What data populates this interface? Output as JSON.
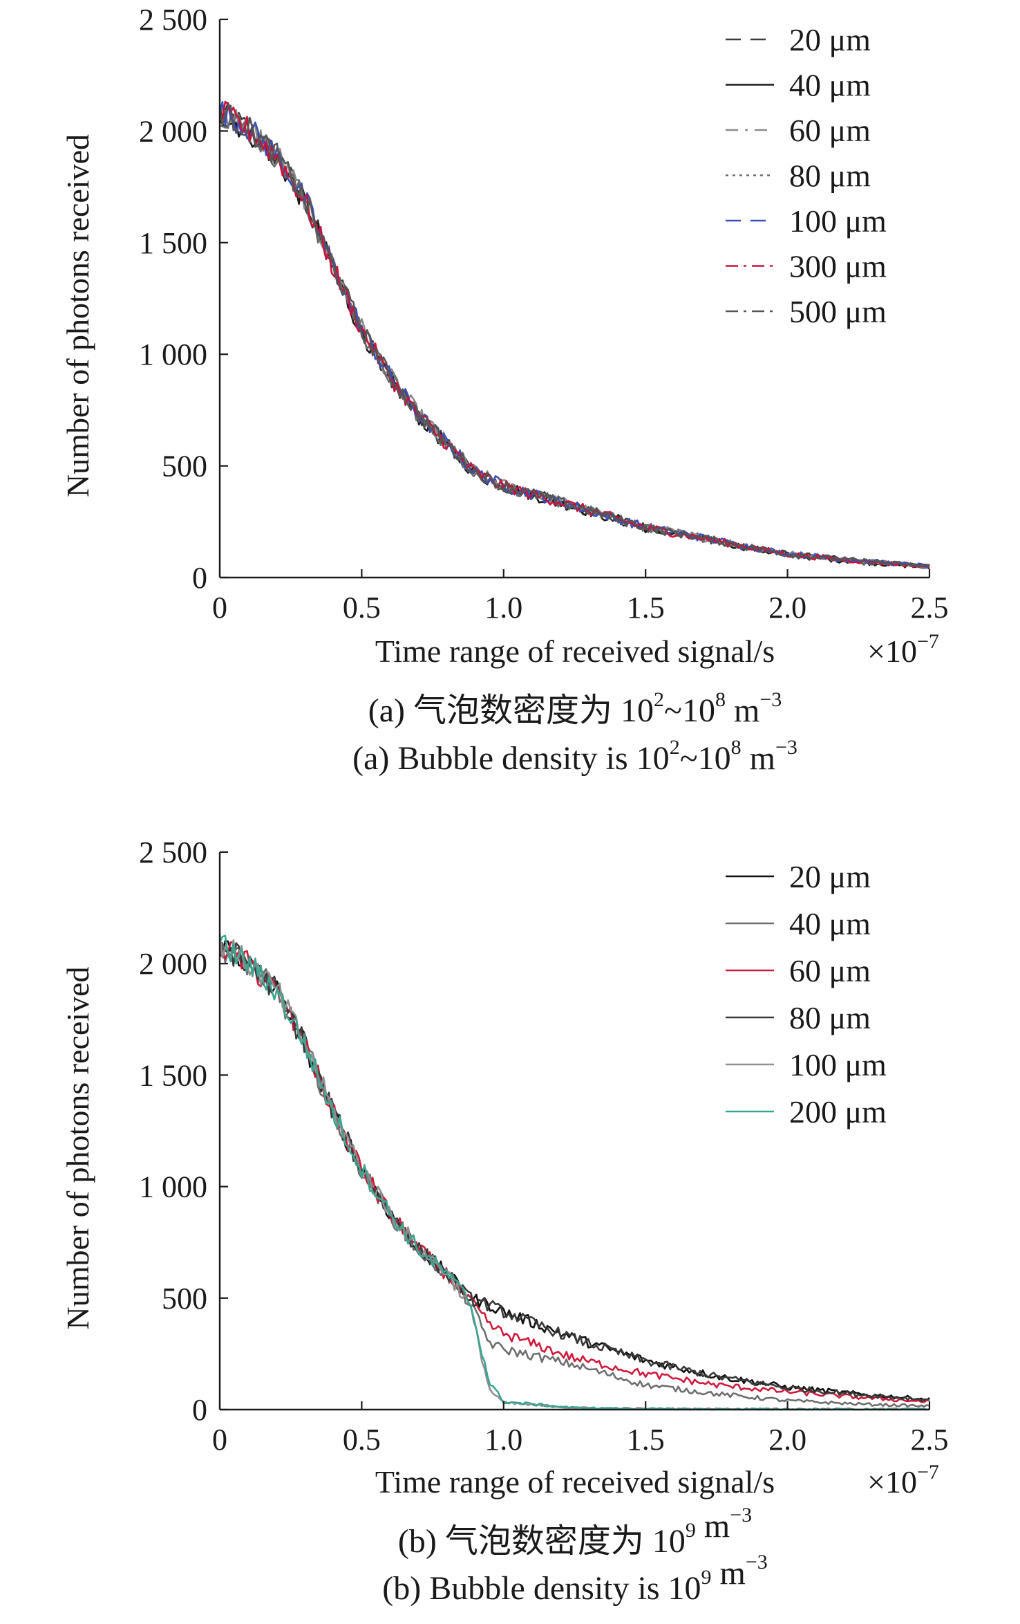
{
  "chart_data": [
    {
      "type": "line",
      "panel": "a",
      "xlabel": "Time range of received signal/s",
      "x_multiplier": "×10",
      "x_multiplier_exp": "−7",
      "ylabel": "Number of photons received",
      "xlim": [
        0,
        2.5
      ],
      "ylim": [
        0,
        2500
      ],
      "xticks": [
        0,
        0.5,
        1.0,
        1.5,
        2.0,
        2.5
      ],
      "xtick_labels": [
        "0",
        "0.5",
        "1.0",
        "1.5",
        "2.0",
        "2.5"
      ],
      "yticks": [
        0,
        500,
        1000,
        1500,
        2000,
        2500
      ],
      "ytick_labels": [
        "0",
        "500",
        "1 000",
        "1 500",
        "2 000",
        "2 500"
      ],
      "legend_position": "top-right",
      "caption_cn": [
        "(a) 气泡数密度为 10",
        "2",
        "~10",
        "8",
        " m",
        "−3"
      ],
      "caption_en": [
        "(a) Bubble density is 10",
        "2",
        "~10",
        "8",
        " m",
        "−3"
      ],
      "series": [
        {
          "name": "20 μm",
          "color": "#3a3a3a",
          "dash": "22,14",
          "x": [
            0,
            0.1,
            0.2,
            0.3,
            0.4,
            0.5,
            0.6,
            0.7,
            0.8,
            0.9,
            1.0,
            1.25,
            1.5,
            1.75,
            2.0,
            2.25,
            2.5
          ],
          "y": [
            2090,
            2010,
            1890,
            1690,
            1390,
            1110,
            900,
            730,
            600,
            470,
            410,
            320,
            225,
            165,
            105,
            75,
            50
          ]
        },
        {
          "name": "40 μm",
          "color": "#1a1a1a",
          "dash": "",
          "x": [
            0,
            0.1,
            0.2,
            0.3,
            0.4,
            0.5,
            0.6,
            0.7,
            0.8,
            0.9,
            1.0,
            1.25,
            1.5,
            1.75,
            2.0,
            2.25,
            2.5
          ],
          "y": [
            2080,
            2000,
            1880,
            1680,
            1380,
            1100,
            890,
            720,
            590,
            465,
            405,
            315,
            220,
            160,
            100,
            70,
            45
          ]
        },
        {
          "name": "60 μm",
          "color": "#8a8a8a",
          "dash": "18,10,4,10",
          "x": [
            0,
            0.1,
            0.2,
            0.3,
            0.4,
            0.5,
            0.6,
            0.7,
            0.8,
            0.9,
            1.0,
            1.25,
            1.5,
            1.75,
            2.0,
            2.25,
            2.5
          ],
          "y": [
            2100,
            2020,
            1900,
            1700,
            1400,
            1120,
            905,
            735,
            605,
            475,
            415,
            322,
            228,
            168,
            108,
            78,
            52
          ]
        },
        {
          "name": "80 μm",
          "color": "#6a6a6a",
          "dash": "4,6",
          "x": [
            0,
            0.1,
            0.2,
            0.3,
            0.4,
            0.5,
            0.6,
            0.7,
            0.8,
            0.9,
            1.0,
            1.25,
            1.5,
            1.75,
            2.0,
            2.25,
            2.5
          ],
          "y": [
            2085,
            2005,
            1885,
            1685,
            1385,
            1105,
            895,
            725,
            595,
            468,
            408,
            318,
            222,
            162,
            102,
            72,
            48
          ]
        },
        {
          "name": "100 μm",
          "color": "#3b4fb8",
          "dash": "22,14",
          "x": [
            0,
            0.1,
            0.2,
            0.3,
            0.4,
            0.5,
            0.6,
            0.7,
            0.8,
            0.9,
            1.0,
            1.25,
            1.5,
            1.75,
            2.0,
            2.25,
            2.5
          ],
          "y": [
            2095,
            2015,
            1895,
            1695,
            1395,
            1115,
            902,
            732,
            602,
            472,
            412,
            320,
            226,
            166,
            106,
            76,
            51
          ]
        },
        {
          "name": "300 μm",
          "color": "#c8143c",
          "dash": "18,8,4,8",
          "x": [
            0,
            0.1,
            0.2,
            0.3,
            0.4,
            0.5,
            0.6,
            0.7,
            0.8,
            0.9,
            1.0,
            1.25,
            1.5,
            1.75,
            2.0,
            2.25,
            2.5
          ],
          "y": [
            2088,
            2008,
            1888,
            1688,
            1388,
            1108,
            898,
            728,
            598,
            470,
            410,
            319,
            224,
            164,
            104,
            74,
            49
          ]
        },
        {
          "name": "500 μm",
          "color": "#555555",
          "dash": "18,8,4,8",
          "x": [
            0,
            0.1,
            0.2,
            0.3,
            0.4,
            0.5,
            0.6,
            0.7,
            0.8,
            0.9,
            1.0,
            1.25,
            1.5,
            1.75,
            2.0,
            2.25,
            2.5
          ],
          "y": [
            2092,
            2012,
            1892,
            1692,
            1392,
            1112,
            900,
            730,
            600,
            471,
            411,
            320,
            225,
            165,
            105,
            75,
            50
          ]
        }
      ]
    },
    {
      "type": "line",
      "panel": "b",
      "xlabel": "Time range of received signal/s",
      "x_multiplier": "×10",
      "x_multiplier_exp": "−7",
      "ylabel": "Number of photons received",
      "xlim": [
        0,
        2.5
      ],
      "ylim": [
        0,
        2500
      ],
      "xticks": [
        0,
        0.5,
        1.0,
        1.5,
        2.0,
        2.5
      ],
      "xtick_labels": [
        "0",
        "0.5",
        "1.0",
        "1.5",
        "2.0",
        "2.5"
      ],
      "yticks": [
        0,
        500,
        1000,
        1500,
        2000,
        2500
      ],
      "ytick_labels": [
        "0",
        "500",
        "1 000",
        "1 500",
        "2 000",
        "2 500"
      ],
      "legend_position": "top-right",
      "caption_cn": [
        "(b) 气泡数密度为 10",
        "9",
        "",
        "",
        " m",
        "−3"
      ],
      "caption_en": [
        "(b) Bubble density is 10",
        "9",
        "",
        "",
        " m",
        "−3"
      ],
      "series": [
        {
          "name": "20 μm",
          "color": "#111111",
          "dash": "",
          "x": [
            0,
            0.1,
            0.2,
            0.3,
            0.4,
            0.5,
            0.6,
            0.7,
            0.8,
            0.88,
            0.95,
            1.0,
            1.25,
            1.5,
            1.75,
            2.0,
            2.25,
            2.5
          ],
          "y": [
            2090,
            2000,
            1880,
            1640,
            1330,
            1080,
            880,
            720,
            610,
            500,
            470,
            440,
            320,
            220,
            150,
            100,
            70,
            45
          ]
        },
        {
          "name": "40 μm",
          "color": "#6e6e6e",
          "dash": "",
          "x": [
            0,
            0.1,
            0.2,
            0.3,
            0.4,
            0.5,
            0.6,
            0.7,
            0.8,
            0.88,
            0.95,
            1.0,
            1.25,
            1.5,
            1.75,
            2.0,
            2.25,
            2.5
          ],
          "y": [
            2080,
            1995,
            1875,
            1635,
            1325,
            1075,
            875,
            715,
            605,
            480,
            300,
            270,
            200,
            110,
            70,
            40,
            25,
            15
          ]
        },
        {
          "name": "60 μm",
          "color": "#d01a3c",
          "dash": "",
          "x": [
            0,
            0.1,
            0.2,
            0.3,
            0.4,
            0.5,
            0.6,
            0.7,
            0.8,
            0.88,
            0.95,
            1.0,
            1.25,
            1.5,
            1.75,
            2.0,
            2.25,
            2.5
          ],
          "y": [
            2085,
            1998,
            1878,
            1638,
            1328,
            1078,
            878,
            718,
            608,
            490,
            380,
            340,
            230,
            160,
            110,
            80,
            55,
            35
          ]
        },
        {
          "name": "80 μm",
          "color": "#3a3a3a",
          "dash": "",
          "x": [
            0,
            0.1,
            0.2,
            0.3,
            0.4,
            0.5,
            0.6,
            0.7,
            0.8,
            0.88,
            0.95,
            1.0,
            1.25,
            1.5,
            1.75,
            2.0,
            2.25,
            2.5
          ],
          "y": [
            2088,
            2002,
            1882,
            1642,
            1332,
            1082,
            882,
            722,
            612,
            498,
            468,
            438,
            318,
            218,
            148,
            98,
            68,
            44
          ]
        },
        {
          "name": "100 μm",
          "color": "#909090",
          "dash": "",
          "x": [
            0,
            0.1,
            0.2,
            0.3,
            0.4,
            0.5,
            0.6,
            0.7,
            0.8,
            0.88,
            0.95,
            1.0,
            1.25,
            1.5,
            1.75,
            2.0,
            2.25,
            2.5
          ],
          "y": [
            2092,
            2004,
            1884,
            1644,
            1334,
            1084,
            884,
            724,
            614,
            470,
            90,
            30,
            8,
            4,
            3,
            2,
            2,
            2
          ]
        },
        {
          "name": "200 μm",
          "color": "#3aa590",
          "dash": "",
          "x": [
            0,
            0.1,
            0.2,
            0.3,
            0.4,
            0.5,
            0.6,
            0.7,
            0.8,
            0.88,
            0.95,
            1.0,
            1.25,
            1.5,
            1.75,
            2.0,
            2.25,
            2.5
          ],
          "y": [
            2086,
            2001,
            1879,
            1639,
            1329,
            1079,
            879,
            719,
            609,
            490,
            120,
            35,
            8,
            3,
            2,
            2,
            1,
            1
          ]
        }
      ]
    }
  ]
}
